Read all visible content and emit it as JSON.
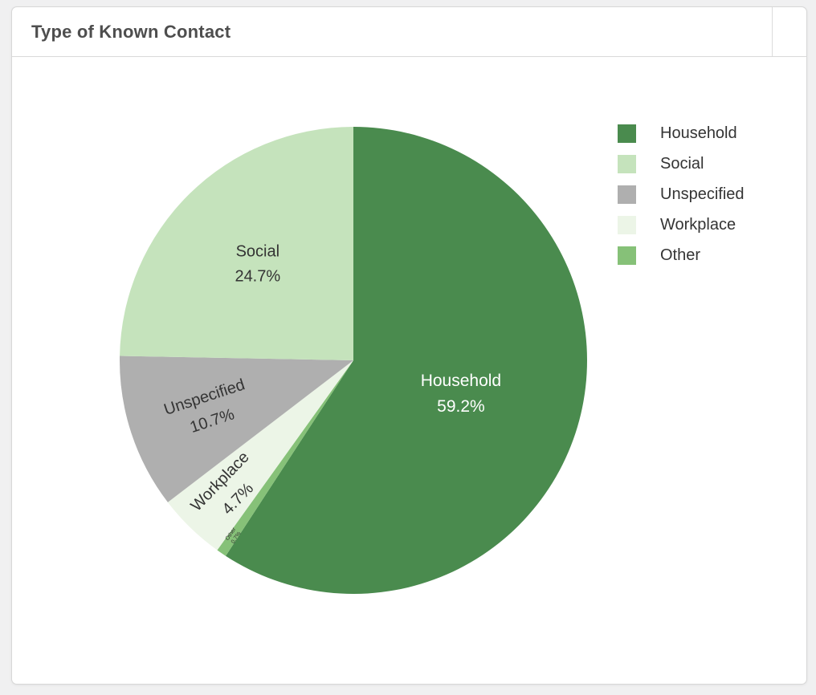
{
  "page": {
    "background": "#f0f0f1"
  },
  "card": {
    "title": "Type of Known Contact"
  },
  "chart_data": {
    "type": "pie",
    "title": "Type of Known Contact",
    "order": "clockwise-from-top",
    "slices": [
      {
        "label": "Household",
        "value_pct": 59.2,
        "color": "#4a8b4e",
        "label_color": "#ffffff"
      },
      {
        "label": "Other",
        "value_pct": 0.7,
        "color": "#86c178",
        "label_color": "#343434"
      },
      {
        "label": "Workplace",
        "value_pct": 4.7,
        "color": "#ecf5e7",
        "label_color": "#343434"
      },
      {
        "label": "Unspecified",
        "value_pct": 10.7,
        "color": "#afafaf",
        "label_color": "#343434"
      },
      {
        "label": "Social",
        "value_pct": 24.7,
        "color": "#c5e3bc",
        "label_color": "#343434"
      }
    ],
    "legend": {
      "position": "right",
      "items": [
        {
          "label": "Household",
          "color": "#4a8b4e"
        },
        {
          "label": "Social",
          "color": "#c5e3bc"
        },
        {
          "label": "Unspecified",
          "color": "#afafaf"
        },
        {
          "label": "Workplace",
          "color": "#ecf5e7"
        },
        {
          "label": "Other",
          "color": "#86c178"
        }
      ]
    }
  }
}
